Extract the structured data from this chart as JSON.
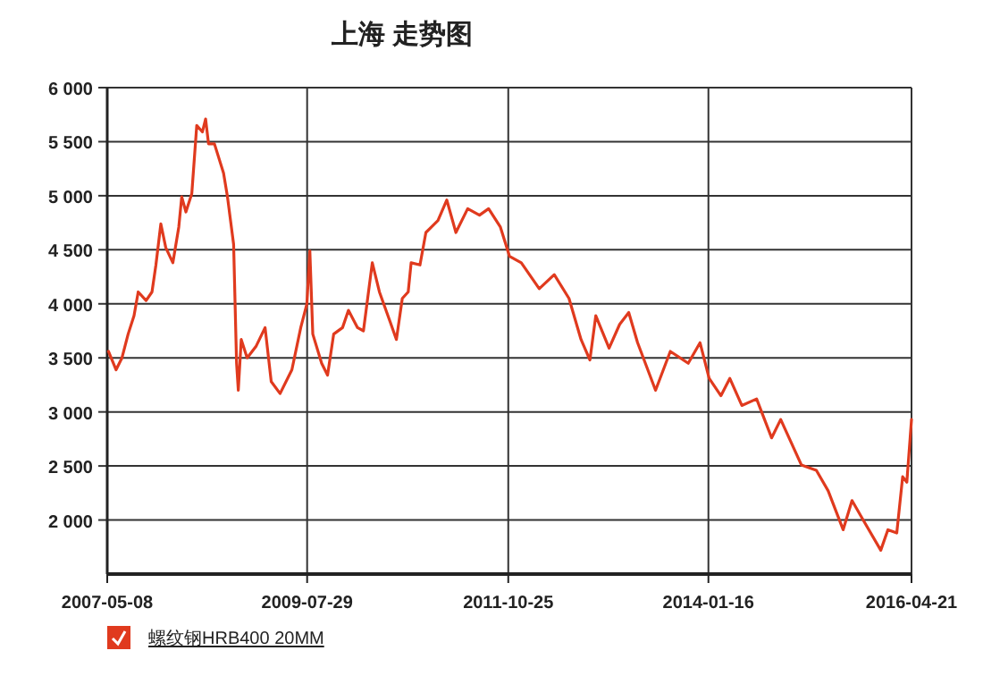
{
  "chart_data": {
    "type": "line",
    "title": "上海 走势图",
    "x": [
      "2007-05-13",
      "2007-06-13",
      "2007-07-07",
      "2007-08-01",
      "2007-08-25",
      "2007-09-11",
      "2007-10-13",
      "2007-11-06",
      "2007-11-22",
      "2007-12-12",
      "2008-01-01",
      "2008-01-30",
      "2008-02-23",
      "2008-03-06",
      "2008-03-23",
      "2008-04-16",
      "2008-05-06",
      "2008-05-29",
      "2008-06-11",
      "2008-06-23",
      "2008-07-17",
      "2008-08-23",
      "2008-09-08",
      "2008-10-03",
      "2008-10-15",
      "2008-10-22",
      "2008-11-03",
      "2008-11-27",
      "2009-01-03",
      "2009-02-08",
      "2009-03-05",
      "2009-04-10",
      "2009-05-28",
      "2009-07-03",
      "2009-07-28",
      "2009-08-09",
      "2009-08-21",
      "2009-09-26",
      "2009-10-20",
      "2009-11-14",
      "2009-12-20",
      "2010-01-13",
      "2010-02-19",
      "2010-03-15",
      "2010-04-20",
      "2010-05-19",
      "2010-07-02",
      "2010-07-27",
      "2010-08-20",
      "2010-09-13",
      "2010-09-25",
      "2010-10-31",
      "2010-11-24",
      "2011-01-12",
      "2011-02-17",
      "2011-03-26",
      "2011-05-13",
      "2011-06-30",
      "2011-08-06",
      "2011-09-23",
      "2011-10-30",
      "2011-12-17",
      "2012-02-28",
      "2012-04-29",
      "2012-06-28",
      "2012-08-16",
      "2012-09-21",
      "2012-10-15",
      "2012-12-08",
      "2013-01-20",
      "2013-02-26",
      "2013-04-03",
      "2013-06-15",
      "2013-08-14",
      "2013-10-26",
      "2013-12-13",
      "2014-01-19",
      "2014-03-08",
      "2014-04-13",
      "2014-06-01",
      "2014-07-31",
      "2014-09-30",
      "2014-11-06",
      "2015-01-29",
      "2015-03-31",
      "2015-05-18",
      "2015-07-18",
      "2015-08-23",
      "2015-10-10",
      "2015-12-18",
      "2016-01-16",
      "2016-02-21",
      "2016-03-16",
      "2016-04-02",
      "2016-04-21"
    ],
    "series": [
      {
        "name": "螺纹钢HRB400 20MM",
        "color": "#e03a1e",
        "values": [
          3560,
          3390,
          3500,
          3720,
          3890,
          4110,
          4030,
          4110,
          4360,
          4740,
          4520,
          4380,
          4710,
          4990,
          4850,
          5020,
          5650,
          5590,
          5710,
          5480,
          5480,
          5210,
          4990,
          4550,
          3450,
          3200,
          3670,
          3500,
          3610,
          3780,
          3280,
          3170,
          3390,
          3780,
          4000,
          4490,
          3720,
          3450,
          3340,
          3720,
          3780,
          3940,
          3780,
          3750,
          4380,
          4110,
          3830,
          3670,
          4050,
          4110,
          4380,
          4360,
          4660,
          4770,
          4960,
          4660,
          4880,
          4820,
          4880,
          4710,
          4440,
          4380,
          4140,
          4270,
          4050,
          3670,
          3480,
          3890,
          3590,
          3810,
          3920,
          3640,
          3200,
          3560,
          3450,
          3640,
          3310,
          3150,
          3310,
          3060,
          3120,
          2760,
          2930,
          2510,
          2460,
          2270,
          1910,
          2180,
          1990,
          1720,
          1910,
          1880,
          2400,
          2350,
          2930
        ]
      }
    ],
    "xlim": [
      "2007-05-08",
      "2016-04-21"
    ],
    "xticks": [
      {
        "value": "2007-05-08",
        "label": "2007-05-08"
      },
      {
        "value": "2009-07-29",
        "label": "2009-07-29"
      },
      {
        "value": "2011-10-25",
        "label": "2011-10-25"
      },
      {
        "value": "2014-01-16",
        "label": "2014-01-16"
      },
      {
        "value": "2016-04-21",
        "label": "2016-04-21"
      }
    ],
    "ylim": [
      1500,
      6000
    ],
    "yticks": [
      {
        "value": 2000,
        "label": "2 000"
      },
      {
        "value": 2500,
        "label": "2 500"
      },
      {
        "value": 3000,
        "label": "3 000"
      },
      {
        "value": 3500,
        "label": "3 500"
      },
      {
        "value": 4000,
        "label": "4 000"
      },
      {
        "value": 4500,
        "label": "4 500"
      },
      {
        "value": 5000,
        "label": "5 000"
      },
      {
        "value": 5500,
        "label": "5 500"
      },
      {
        "value": 6000,
        "label": "6 000"
      }
    ],
    "grid": true,
    "legend": "bottom left",
    "marker": "none",
    "line_style": "solid"
  }
}
